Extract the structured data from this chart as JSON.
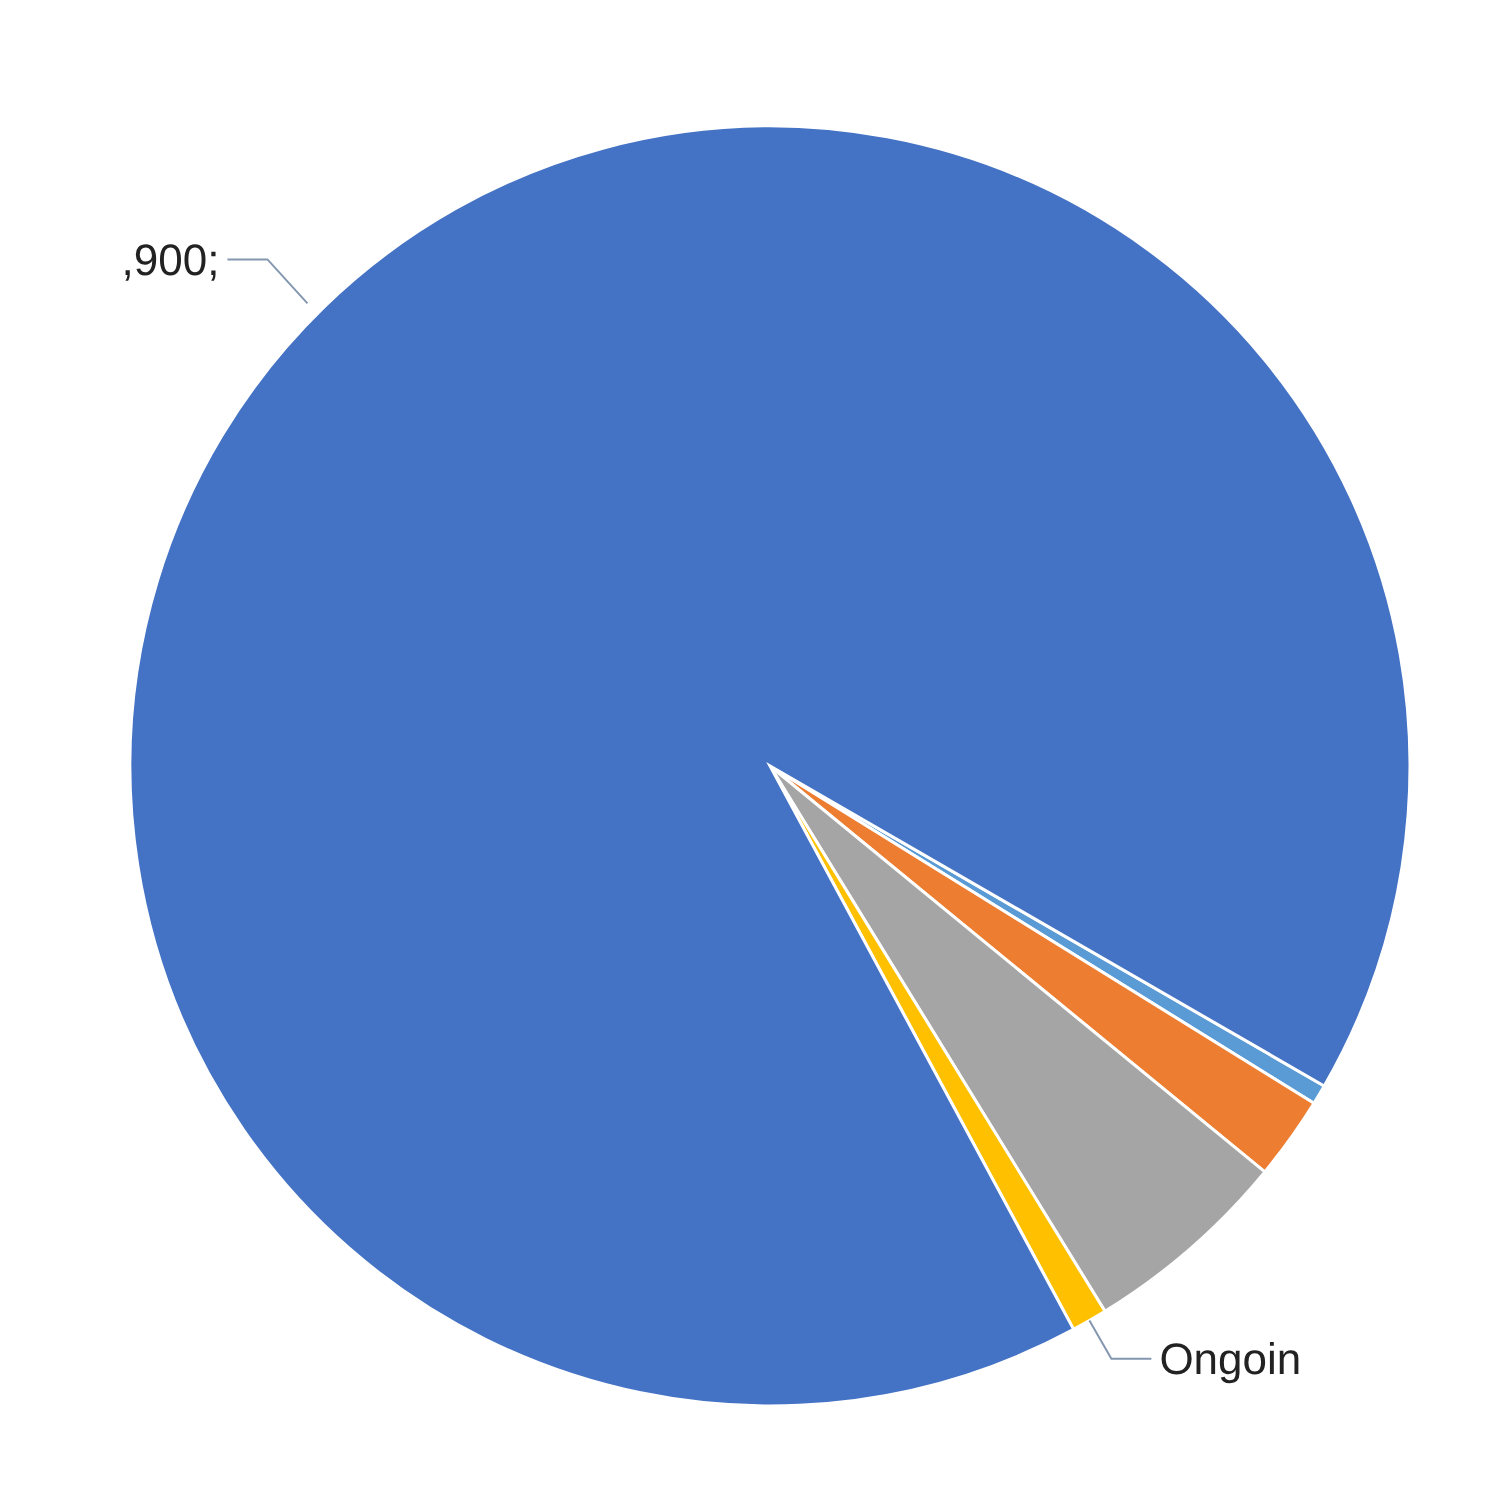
{
  "chart_data": {
    "type": "pie",
    "categories": [
      null,
      null,
      null,
      "Ongoin",
      null
    ],
    "values": [
      0.5,
      2.1,
      5.3,
      0.9,
      91.2
    ],
    "colors": [
      "#5b9bd5",
      "#ed7d31",
      "#a5a5a5",
      "#ffc000",
      "#4472c4"
    ],
    "annotations": [
      ",900;"
    ]
  }
}
